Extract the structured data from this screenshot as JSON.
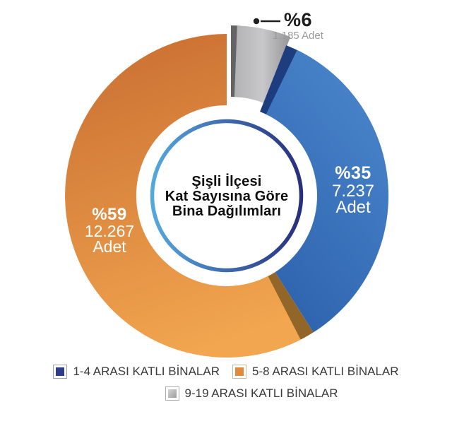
{
  "chart_data": {
    "type": "pie",
    "variant": "exploded-donut",
    "title": "Şişli İlçesi Kat Sayısına Göre Bina Dağılımları",
    "center_title_lines": [
      "Şişli İlçesi",
      "Kat Sayısına Göre",
      "Bina Dağılımları"
    ],
    "unit_word": "Adet",
    "start_angle_deg": 0,
    "direction": "clockwise",
    "legend_position": "bottom",
    "slices": [
      {
        "name": "9-19-arasi-katli",
        "legend_label": "9-19 ARASI KATLI BİNALAR",
        "pct": 6,
        "pct_label": "%6",
        "value": 1185,
        "count_label": "1.185",
        "count_with_unit": "1.185 Adet",
        "body_gradient": {
          "coords": [
            0,
            0,
            1,
            0
          ],
          "stops": [
            [
              0,
              "#b2b2b4"
            ],
            [
              0.5,
              "#c8c8ca"
            ],
            [
              1,
              "#96969a"
            ]
          ]
        },
        "edge_color": "#646467",
        "edge_span_deg": 3.2,
        "body_inset_deg": 2.2,
        "explode": [
          6,
          -12
        ]
      },
      {
        "name": "1-4-arasi-katli",
        "legend_label": "1-4 ARASI KATLI BİNALAR",
        "pct": 35,
        "pct_label": "%35",
        "value": 7237,
        "count_label": "7.237",
        "body_gradient": {
          "coords": [
            0.75,
            0,
            0.25,
            1
          ],
          "stops": [
            [
              0,
              "#4a86cc"
            ],
            [
              1,
              "#2e63ad"
            ]
          ]
        },
        "edge_color": "#1e3d7f",
        "edge_span_deg": 6,
        "body_inset_deg": 4.2,
        "explode": [
          0,
          0
        ]
      },
      {
        "name": "5-8-arasi-katli",
        "legend_label": "5-8 ARASI KATLI BİNALAR",
        "pct": 59,
        "pct_label": "%59",
        "value": 12267,
        "count_label": "12.267",
        "body_gradient": {
          "coords": [
            0.25,
            0,
            0.5,
            1
          ],
          "stops": [
            [
              0,
              "#ca7033"
            ],
            [
              1,
              "#f2a64f"
            ]
          ]
        },
        "edge_color": "#926628",
        "edge_span_deg": 7.5,
        "body_inset_deg": 5.2,
        "explode": [
          0,
          0
        ]
      }
    ],
    "ring_gradient": {
      "stops": [
        [
          0,
          "#55a8de"
        ],
        [
          1,
          "#272f7d"
        ]
      ]
    },
    "leader_color": "#1f1f1f"
  },
  "legend": {
    "rows": [
      [
        {
          "label": "1-4 ARASI KATLI BİNALAR",
          "fill": "#2e3d8b",
          "border": "#98a0bb"
        },
        {
          "label": "5-8 ARASI KATLI BİNALAR",
          "fill": "#e2893c",
          "border": "#cfba96"
        }
      ],
      [
        {
          "label": "9-19 ARASI KATLI BİNALAR",
          "fill": "#d6d6d6",
          "fill_to": "#9c9c9c",
          "border": "#ababab"
        }
      ]
    ]
  }
}
